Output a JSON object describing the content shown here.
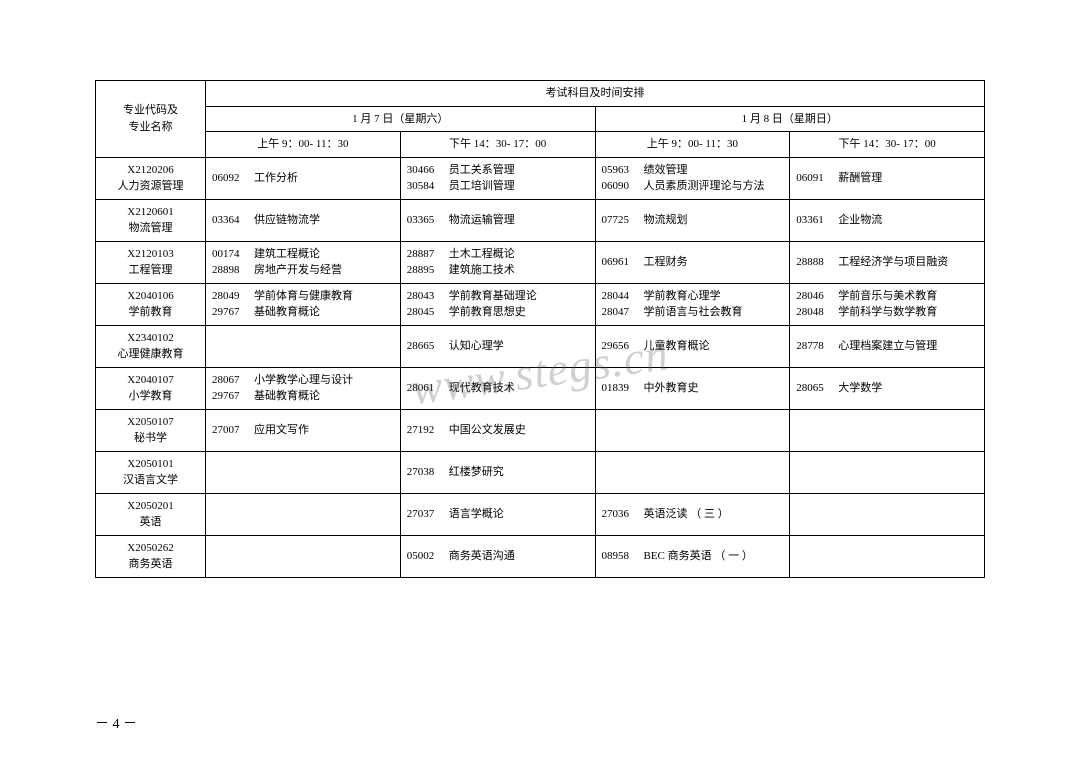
{
  "header": {
    "rowLabel": "专业代码及\n专业名称",
    "groupLabel": "考试科目及时间安排",
    "day1": "1 月 7  日（星期六）",
    "day2": "1 月 8 日（星期日）",
    "s1": "上午 9：00- 11：30",
    "s2": "下午 14：30- 17：00",
    "s3": "上午 9：00- 11：30",
    "s4": "下午 14：30- 17：00"
  },
  "rows": [
    {
      "major": {
        "code": "X2120206",
        "name": "人力资源管理"
      },
      "c1": [
        {
          "code": "06092",
          "name": "工作分析"
        }
      ],
      "c2": [
        {
          "code": "30466",
          "name": "员工关系管理"
        },
        {
          "code": "30584",
          "name": "员工培训管理"
        }
      ],
      "c3": [
        {
          "code": "05963",
          "name": "绩效管理"
        },
        {
          "code": "06090",
          "name": "人员素质测评理论与方法"
        }
      ],
      "c4": [
        {
          "code": "06091",
          "name": "薪酬管理"
        }
      ]
    },
    {
      "major": {
        "code": "X2120601",
        "name": "物流管理"
      },
      "c1": [
        {
          "code": "03364",
          "name": "供应链物流学"
        }
      ],
      "c2": [
        {
          "code": "03365",
          "name": "物流运输管理"
        }
      ],
      "c3": [
        {
          "code": "07725",
          "name": "物流规划"
        }
      ],
      "c4": [
        {
          "code": "03361",
          "name": "企业物流"
        }
      ]
    },
    {
      "major": {
        "code": "X2120103",
        "name": "工程管理"
      },
      "c1": [
        {
          "code": "00174",
          "name": "建筑工程概论"
        },
        {
          "code": "28898",
          "name": "房地产开发与经营"
        }
      ],
      "c2": [
        {
          "code": "28887",
          "name": "土木工程概论"
        },
        {
          "code": "28895",
          "name": "建筑施工技术"
        }
      ],
      "c3": [
        {
          "code": "06961",
          "name": "工程财务"
        }
      ],
      "c4": [
        {
          "code": "28888",
          "name": "工程经济学与项目融资"
        }
      ]
    },
    {
      "major": {
        "code": "X2040106",
        "name": "学前教育"
      },
      "c1": [
        {
          "code": "28049",
          "name": "学前体育与健康教育"
        },
        {
          "code": "29767",
          "name": "基础教育概论"
        }
      ],
      "c2": [
        {
          "code": "28043",
          "name": "学前教育基础理论"
        },
        {
          "code": "28045",
          "name": "学前教育思想史"
        }
      ],
      "c3": [
        {
          "code": "28044",
          "name": "学前教育心理学"
        },
        {
          "code": "28047",
          "name": "学前语言与社会教育"
        }
      ],
      "c4": [
        {
          "code": "28046",
          "name": "学前音乐与美术教育"
        },
        {
          "code": "28048",
          "name": "学前科学与数学教育"
        }
      ]
    },
    {
      "major": {
        "code": "X2340102",
        "name": "心理健康教育"
      },
      "c1": [],
      "c2": [
        {
          "code": "28665",
          "name": "认知心理学"
        }
      ],
      "c3": [
        {
          "code": "29656",
          "name": "儿童教育概论"
        }
      ],
      "c4": [
        {
          "code": "28778",
          "name": "心理档案建立与管理"
        }
      ]
    },
    {
      "major": {
        "code": "X2040107",
        "name": "小学教育"
      },
      "c1": [
        {
          "code": "28067",
          "name": "小学教学心理与设计"
        },
        {
          "code": "29767",
          "name": "基础教育概论"
        }
      ],
      "c2": [
        {
          "code": "28061",
          "name": "现代教育技术"
        }
      ],
      "c3": [
        {
          "code": "01839",
          "name": "中外教育史"
        }
      ],
      "c4": [
        {
          "code": "28065",
          "name": "大学数学"
        }
      ]
    },
    {
      "major": {
        "code": "X2050107",
        "name": "秘书学"
      },
      "c1": [
        {
          "code": "27007",
          "name": "应用文写作"
        }
      ],
      "c2": [
        {
          "code": "27192",
          "name": "中国公文发展史"
        }
      ],
      "c3": [],
      "c4": []
    },
    {
      "major": {
        "code": "X2050101",
        "name": "汉语言文学"
      },
      "c1": [],
      "c2": [
        {
          "code": "27038",
          "name": "红楼梦研究"
        }
      ],
      "c3": [],
      "c4": []
    },
    {
      "major": {
        "code": "X2050201",
        "name": "英语"
      },
      "c1": [],
      "c2": [
        {
          "code": "27037",
          "name": "语言学概论"
        }
      ],
      "c3": [
        {
          "code": "27036",
          "name": "英语泛读 （ 三 ）"
        }
      ],
      "c4": []
    },
    {
      "major": {
        "code": "X2050262",
        "name": "商务英语"
      },
      "c1": [],
      "c2": [
        {
          "code": "05002",
          "name": "商务英语沟通"
        }
      ],
      "c3": [
        {
          "code": "08958",
          "name": "BEC 商务英语 （ 一 ）"
        }
      ],
      "c4": []
    }
  ],
  "pageNumber": "－ 4 －",
  "watermark": "www.stegs.cn"
}
